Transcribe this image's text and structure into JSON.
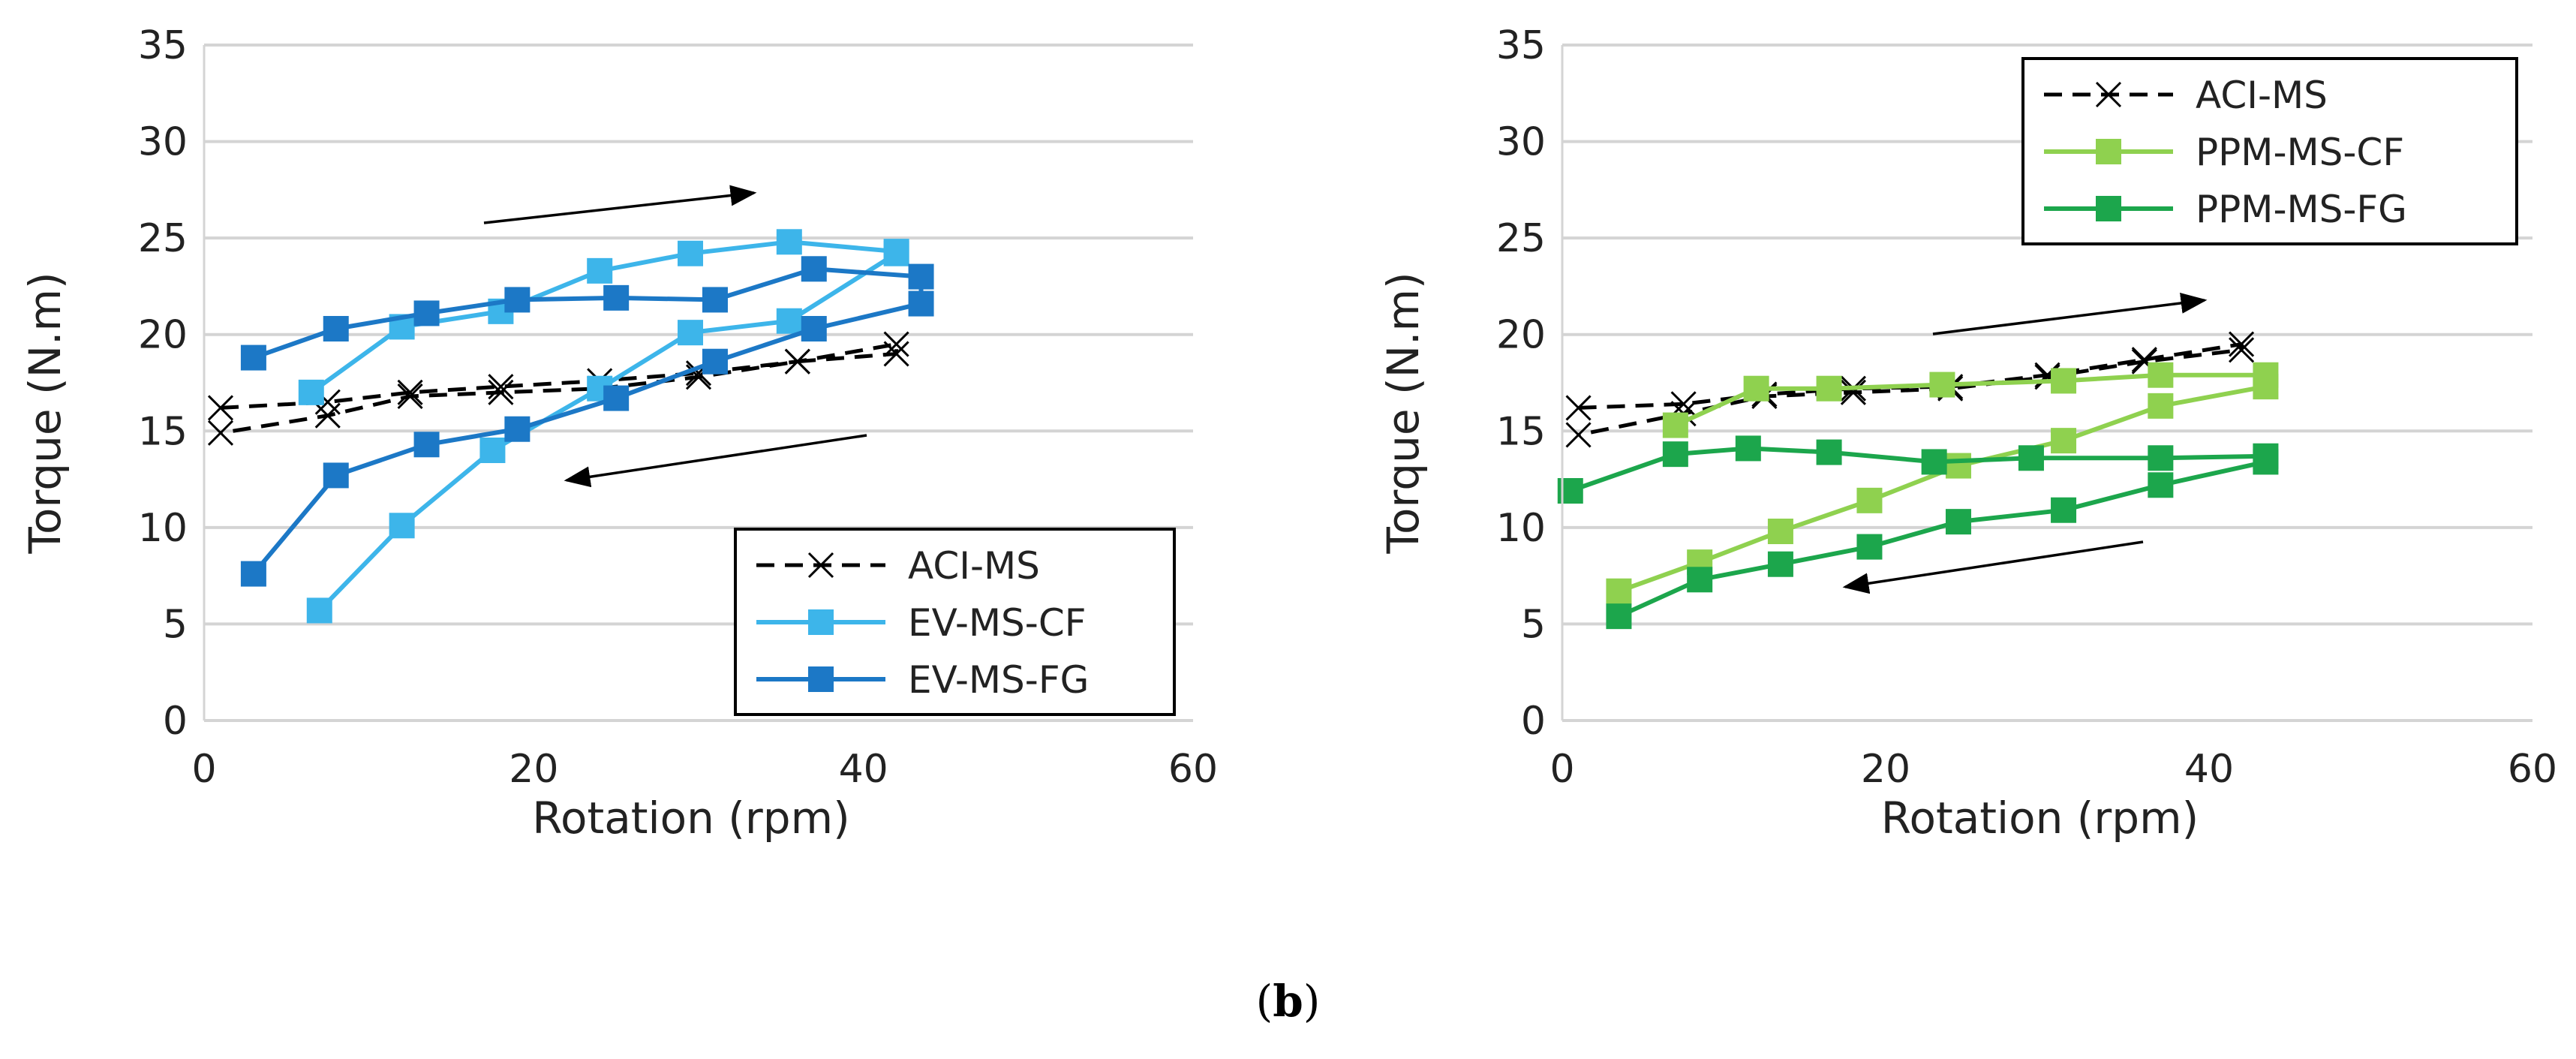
{
  "caption": {
    "open": "(",
    "letter": "b",
    "close": ")"
  },
  "chart_data": [
    {
      "type": "line",
      "xlabel": "Rotation (rpm)",
      "ylabel": "Torque (N.m)",
      "xlim": [
        0,
        60
      ],
      "ylim": [
        0,
        35
      ],
      "xticks": [
        "0",
        "20",
        "40",
        "60"
      ],
      "yticks": [
        "0",
        "5",
        "10",
        "15",
        "20",
        "25",
        "30",
        "35"
      ],
      "grid": "horizontal",
      "legend_position": "bottom-right",
      "series": [
        {
          "name": "ACI-MS",
          "marker": "x",
          "color": "#000000",
          "dash": true,
          "x": [
            1,
            7.5,
            12.5,
            18,
            24,
            30,
            36,
            42,
            42,
            36,
            30,
            24,
            18,
            12.5,
            7.5,
            1
          ],
          "y": [
            16.2,
            16.5,
            17.0,
            17.3,
            17.6,
            18.0,
            18.6,
            19.5,
            19.0,
            18.6,
            17.8,
            17.2,
            17.0,
            16.8,
            15.8,
            14.9
          ]
        },
        {
          "name": "EV-MS-CF",
          "marker": "square",
          "color": "#3db5ea",
          "dash": false,
          "x": [
            7,
            12,
            17.5,
            24,
            29.5,
            35.5,
            42,
            42,
            35.5,
            29.5,
            24,
            18,
            12,
            6.5
          ],
          "y": [
            5.7,
            10.1,
            14.0,
            17.2,
            20.1,
            20.7,
            24.2,
            24.3,
            24.8,
            24.2,
            23.3,
            21.2,
            20.4,
            17.0
          ]
        },
        {
          "name": "EV-MS-FG",
          "marker": "square",
          "color": "#1c78c6",
          "dash": false,
          "x": [
            3,
            8,
            13.5,
            19,
            25,
            31,
            37,
            43.5,
            43.5,
            37,
            31,
            25,
            19,
            13.5,
            8,
            3
          ],
          "y": [
            7.6,
            12.7,
            14.3,
            15.1,
            16.7,
            18.6,
            20.3,
            21.6,
            23.0,
            23.4,
            21.8,
            21.9,
            21.8,
            21.1,
            20.3,
            18.8
          ]
        }
      ]
    },
    {
      "type": "line",
      "xlabel": "Rotation (rpm)",
      "ylabel": "Torque (N.m)",
      "xlim": [
        0,
        60
      ],
      "ylim": [
        0,
        35
      ],
      "xticks": [
        "0",
        "20",
        "40",
        "60"
      ],
      "yticks": [
        "0",
        "5",
        "10",
        "15",
        "20",
        "25",
        "30",
        "35"
      ],
      "grid": "horizontal",
      "legend_position": "top-right",
      "series": [
        {
          "name": "ACI-MS",
          "marker": "x",
          "color": "#000000",
          "dash": true,
          "x": [
            1,
            7.5,
            12.5,
            18,
            24,
            30,
            36,
            42,
            42,
            36,
            30,
            24,
            18,
            12.5,
            7.5,
            1
          ],
          "y": [
            16.2,
            16.4,
            16.9,
            17.2,
            17.3,
            17.9,
            18.7,
            19.5,
            19.2,
            18.6,
            17.8,
            17.2,
            17.0,
            16.8,
            15.9,
            14.8
          ]
        },
        {
          "name": "PPM-MS-CF",
          "marker": "square",
          "color": "#8fd14f",
          "dash": false,
          "x": [
            3.5,
            8.5,
            13.5,
            19,
            24.5,
            31,
            37,
            43.5,
            43.5,
            37,
            31,
            23.5,
            16.5,
            12,
            7
          ],
          "y": [
            6.7,
            8.2,
            9.8,
            11.4,
            13.2,
            14.5,
            16.3,
            17.3,
            17.9,
            17.9,
            17.6,
            17.4,
            17.2,
            17.2,
            15.3
          ]
        },
        {
          "name": "PPM-MS-FG",
          "marker": "square",
          "color": "#1ca64c",
          "dash": false,
          "x": [
            3.5,
            8.5,
            13.5,
            19,
            24.5,
            31,
            37,
            43.5,
            43.5,
            37,
            29,
            23,
            16.5,
            11.5,
            7,
            0.5
          ],
          "y": [
            5.4,
            7.3,
            8.1,
            9.0,
            10.3,
            10.9,
            12.2,
            13.4,
            13.7,
            13.6,
            13.6,
            13.4,
            13.9,
            14.1,
            13.8,
            11.9
          ]
        }
      ]
    }
  ]
}
